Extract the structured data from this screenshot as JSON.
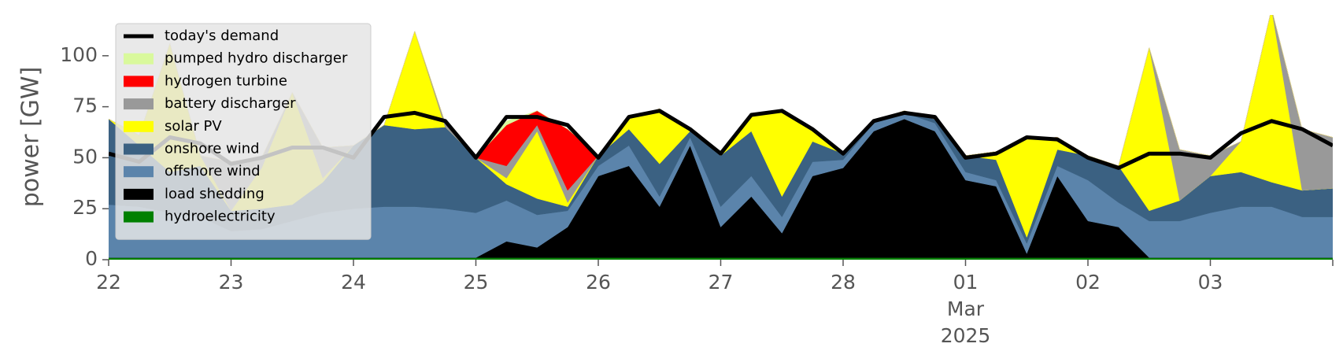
{
  "chart_data": {
    "type": "stacked_area",
    "ylabel": "power [GW]",
    "x": [
      "2025-02-22T00:00",
      "2025-02-22T06:00",
      "2025-02-22T12:00",
      "2025-02-22T18:00",
      "2025-02-23T00:00",
      "2025-02-23T06:00",
      "2025-02-23T12:00",
      "2025-02-23T18:00",
      "2025-02-24T00:00",
      "2025-02-24T06:00",
      "2025-02-24T12:00",
      "2025-02-24T18:00",
      "2025-02-25T00:00",
      "2025-02-25T06:00",
      "2025-02-25T12:00",
      "2025-02-25T18:00",
      "2025-02-26T00:00",
      "2025-02-26T06:00",
      "2025-02-26T12:00",
      "2025-02-26T18:00",
      "2025-02-27T00:00",
      "2025-02-27T06:00",
      "2025-02-27T12:00",
      "2025-02-27T18:00",
      "2025-02-28T00:00",
      "2025-02-28T06:00",
      "2025-02-28T12:00",
      "2025-02-28T18:00",
      "2025-03-01T00:00",
      "2025-03-01T06:00",
      "2025-03-01T12:00",
      "2025-03-01T18:00",
      "2025-03-02T00:00",
      "2025-03-02T06:00",
      "2025-03-02T12:00",
      "2025-03-02T18:00",
      "2025-03-03T00:00",
      "2025-03-03T06:00",
      "2025-03-03T12:00",
      "2025-03-03T18:00",
      "2025-03-04T00:00"
    ],
    "xlim": [
      "2025-02-22T00:00",
      "2025-03-04T00:00"
    ],
    "xticks": [
      {
        "value": "2025-02-22T00:00",
        "label": "22"
      },
      {
        "value": "2025-02-23T00:00",
        "label": "23"
      },
      {
        "value": "2025-02-24T00:00",
        "label": "24"
      },
      {
        "value": "2025-02-25T00:00",
        "label": "25"
      },
      {
        "value": "2025-02-26T00:00",
        "label": "26"
      },
      {
        "value": "2025-02-27T00:00",
        "label": "27"
      },
      {
        "value": "2025-02-28T00:00",
        "label": "28"
      },
      {
        "value": "2025-03-01T00:00",
        "label": "01"
      },
      {
        "value": "2025-03-02T00:00",
        "label": "02"
      },
      {
        "value": "2025-03-03T00:00",
        "label": "03"
      }
    ],
    "xtick_sublabels": {
      "tick": 7,
      "lines": [
        "Mar",
        "2025"
      ]
    },
    "ylim": [
      0,
      120
    ],
    "yticks": [
      0,
      25,
      50,
      75,
      100
    ],
    "legend": "upper left",
    "demand": {
      "name": "today's demand",
      "color": "#000000",
      "values": [
        52,
        48,
        60,
        57,
        47,
        50,
        55,
        55,
        50,
        70,
        72,
        68,
        50,
        70,
        70,
        66,
        50,
        70,
        73,
        64,
        52,
        71,
        73,
        64,
        52,
        68,
        72,
        70,
        50,
        52,
        60,
        59,
        50,
        45,
        52,
        52,
        50,
        62,
        68,
        64,
        56
      ]
    },
    "series": [
      {
        "name": "hydroelectricity",
        "color": "#008000",
        "values": [
          1,
          1,
          1,
          1,
          1,
          1,
          1,
          1,
          1,
          1,
          1,
          1,
          1,
          1,
          1,
          1,
          1,
          1,
          1,
          1,
          1,
          1,
          1,
          1,
          1,
          1,
          1,
          1,
          1,
          1,
          1,
          1,
          1,
          1,
          1,
          1,
          1,
          1,
          1,
          1,
          1
        ]
      },
      {
        "name": "load shedding",
        "color": "#000000",
        "values": [
          0,
          0,
          0,
          0,
          0,
          0,
          0,
          0,
          0,
          0,
          0,
          0,
          0,
          8,
          5,
          15,
          40,
          45,
          25,
          55,
          15,
          30,
          12,
          40,
          44,
          62,
          68,
          62,
          38,
          35,
          2,
          40,
          18,
          15,
          0,
          0,
          0,
          0,
          0,
          0,
          0
        ]
      },
      {
        "name": "offshore wind",
        "color": "#5b84ab",
        "values": [
          26,
          25,
          22,
          20,
          13,
          14,
          18,
          22,
          24,
          25,
          25,
          24,
          22,
          20,
          16,
          8,
          5,
          10,
          5,
          4,
          10,
          10,
          8,
          7,
          4,
          4,
          3,
          4,
          4,
          3,
          5,
          5,
          20,
          12,
          18,
          18,
          22,
          25,
          25,
          20,
          20
        ]
      },
      {
        "name": "onshore wind",
        "color": "#3b6182",
        "values": [
          42,
          30,
          20,
          25,
          10,
          10,
          8,
          15,
          31,
          40,
          38,
          40,
          27,
          8,
          8,
          2,
          5,
          8,
          16,
          3,
          25,
          22,
          10,
          10,
          3,
          1,
          1,
          2,
          8,
          10,
          3,
          8,
          12,
          18,
          5,
          10,
          18,
          17,
          12,
          13,
          14
        ]
      },
      {
        "name": "solar PV",
        "color": "#ffff00",
        "values": [
          0,
          5,
          63,
          5,
          0,
          20,
          55,
          2,
          0,
          0,
          48,
          0,
          0,
          3,
          33,
          2,
          0,
          5,
          27,
          0,
          0,
          8,
          42,
          5,
          0,
          0,
          0,
          0,
          0,
          4,
          48,
          6,
          0,
          0,
          80,
          0,
          0,
          15,
          85,
          0,
          0
        ]
      },
      {
        "name": "battery discharger",
        "color": "#999999",
        "values": [
          0,
          0,
          0,
          0,
          24,
          5,
          0,
          15,
          0,
          0,
          0,
          2,
          0,
          6,
          3,
          6,
          0,
          0,
          0,
          0,
          0,
          0,
          0,
          0,
          0,
          0,
          0,
          0,
          0,
          0,
          0,
          0,
          0,
          0,
          0,
          25,
          10,
          0,
          0,
          30,
          25
        ]
      },
      {
        "name": "hydrogen turbine",
        "color": "#ff0000",
        "values": [
          0,
          0,
          0,
          0,
          0,
          0,
          0,
          0,
          0,
          0,
          0,
          0,
          0,
          20,
          7,
          30,
          0,
          0,
          0,
          0,
          0,
          0,
          0,
          0,
          0,
          0,
          0,
          0,
          0,
          0,
          0,
          0,
          0,
          0,
          0,
          0,
          0,
          0,
          0,
          0,
          0
        ]
      },
      {
        "name": "pumped hydro discharger",
        "color": "#d9f99c",
        "values": [
          0,
          0,
          0,
          0,
          0,
          0,
          0,
          0,
          0,
          0,
          0,
          0,
          0,
          2,
          0,
          0,
          0,
          0,
          0,
          0,
          0,
          0,
          0,
          0,
          0,
          0,
          0,
          0,
          0,
          0,
          0,
          0,
          0,
          0,
          0,
          0,
          0,
          0,
          0,
          0,
          0
        ]
      }
    ]
  }
}
